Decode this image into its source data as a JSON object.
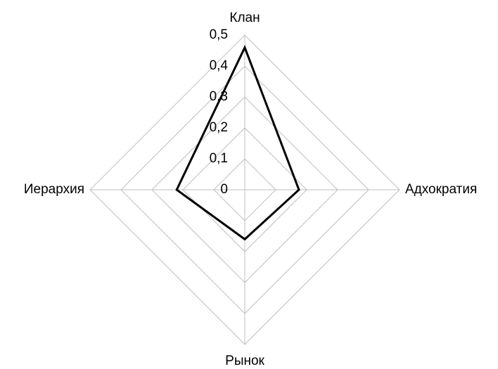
{
  "chart_data": {
    "type": "radar",
    "categories": [
      "Клан",
      "Адхократия",
      "Рынок",
      "Иерархия"
    ],
    "values": [
      0.46,
      0.175,
      0.16,
      0.22
    ],
    "color": "#000000",
    "grid_color": "#bfbfbf",
    "ylim": [
      0,
      0.5
    ],
    "yticks": [
      0,
      {
        "value": 0.1,
        "label": "0,1"
      },
      {
        "value": 0.2,
        "label": "0,2"
      },
      {
        "value": 0.3,
        "label": "0,3"
      },
      {
        "value": 0.4,
        "label": "0,4"
      },
      {
        "value": 0.5,
        "label": "0,5"
      }
    ],
    "grid": true
  }
}
